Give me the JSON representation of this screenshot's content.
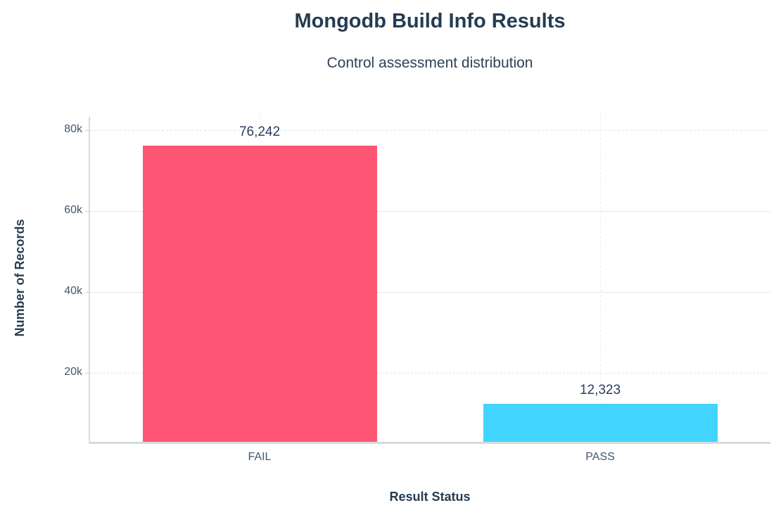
{
  "chart_data": {
    "type": "bar",
    "title": "Mongodb Build Info Results",
    "subtitle": "Control assessment distribution",
    "xlabel": "Result Status",
    "ylabel": "Number of Records",
    "categories": [
      "FAIL",
      "PASS"
    ],
    "values": [
      76242,
      12323
    ],
    "value_labels": [
      "76,242",
      "12,323"
    ],
    "bar_colors": [
      "#ff5676",
      "#41d4fd"
    ],
    "yticks": [
      {
        "value": 80000,
        "label": "80k",
        "dashed": true
      },
      {
        "value": 60000,
        "label": "60k",
        "dashed": false
      },
      {
        "value": 40000,
        "label": "40k",
        "dashed": false
      },
      {
        "value": 20000,
        "label": "20k",
        "dashed": true
      }
    ],
    "ylim": [
      0,
      84000
    ],
    "grid": true,
    "legend": false,
    "colors": {
      "title_text": "#253c52",
      "body_text": "#2a3f5f",
      "tick_text": "#42586e",
      "axis_line": "#d5dadd",
      "gridline": "#e3e7ee",
      "background": "#ffffff"
    }
  }
}
